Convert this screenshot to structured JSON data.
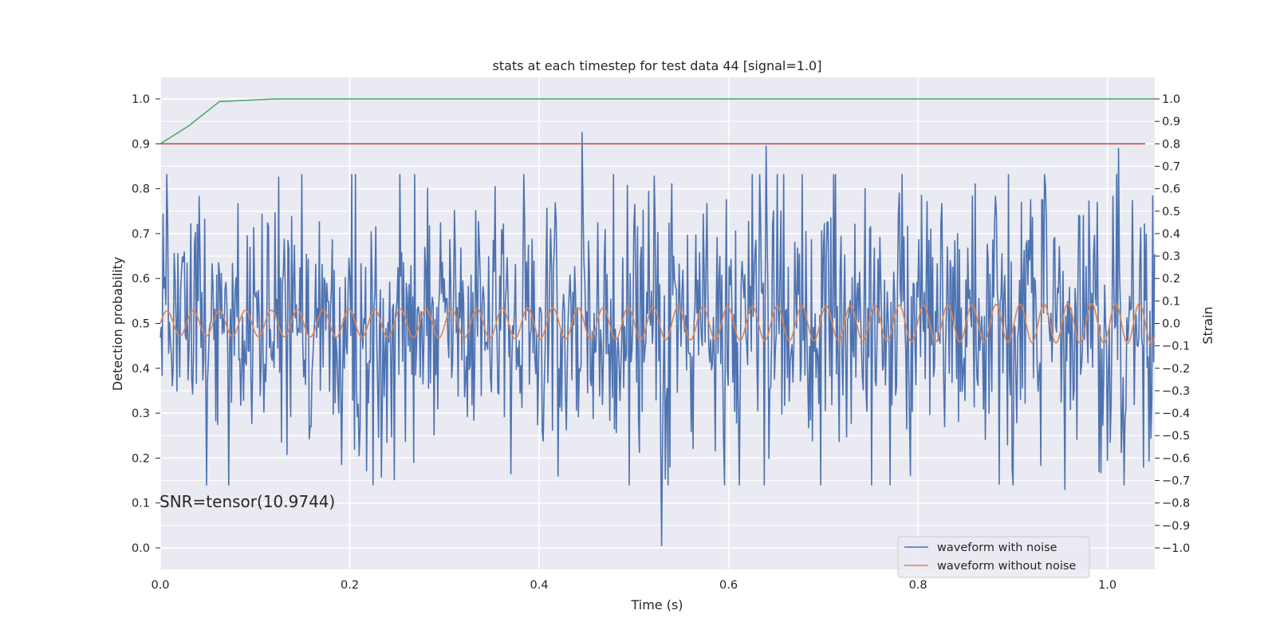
{
  "chart_data": {
    "type": "line",
    "title": "stats at each timestep for test data 44 [signal=1.0]",
    "xlabel": "Time (s)",
    "ylabel": "Detection probability",
    "ylabel_right": "Strain",
    "xlim": [
      0.0,
      1.05
    ],
    "ylim": [
      -0.048,
      1.048
    ],
    "ylim_right": [
      -1.096,
      1.096
    ],
    "x_ticks": [
      "0.0",
      "0.2",
      "0.4",
      "0.6",
      "0.8",
      "1.0"
    ],
    "y_ticks": [
      "0.0",
      "0.1",
      "0.2",
      "0.3",
      "0.4",
      "0.5",
      "0.6",
      "0.7",
      "0.8",
      "0.9",
      "1.0"
    ],
    "y_ticks_right": [
      "−1.0",
      "−0.9",
      "−0.8",
      "−0.7",
      "−0.6",
      "−0.5",
      "−0.4",
      "−0.3",
      "−0.2",
      "−0.1",
      "0.0",
      "0.1",
      "0.2",
      "0.3",
      "0.4",
      "0.5",
      "0.6",
      "0.7",
      "0.8",
      "0.9",
      "1.0"
    ],
    "grid": true,
    "background": "#eaeaf2",
    "detection_probability": {
      "color": "#55a868",
      "x": [
        0.0,
        0.03,
        0.0625,
        0.12,
        1.05
      ],
      "y": [
        0.9,
        0.94,
        0.994,
        1.0,
        1.0
      ]
    },
    "threshold": {
      "color": "#c44e52",
      "y": 0.9,
      "x": [
        0.0,
        1.04
      ]
    },
    "series": [
      {
        "name": "waveform with noise",
        "axis": "right",
        "color": "#4c72b0",
        "sample_rate": 1024,
        "amplitude_range": [
          -1.0,
          0.85
        ],
        "notable_points": [
          {
            "x": 0.445,
            "y": 0.85
          },
          {
            "x": 0.529,
            "y": -0.99
          },
          {
            "x": 0.37,
            "y": -0.67
          },
          {
            "x": 0.42,
            "y": -0.68
          },
          {
            "x": 1.012,
            "y": 0.78
          },
          {
            "x": 0.64,
            "y": 0.79
          },
          {
            "x": 0.955,
            "y": -0.74
          }
        ]
      },
      {
        "name": "waveform without noise",
        "axis": "right",
        "color": "#dd8452",
        "t_end": 1.05,
        "frequency_start_hz": 36,
        "frequency_end_hz": 40,
        "amplitude_start": 0.055,
        "amplitude_end": 0.09
      }
    ],
    "legend": {
      "placement": "lower right",
      "entries": [
        "waveform with noise",
        "waveform without noise"
      ]
    },
    "annotation": "SNR=tensor(10.9744)"
  }
}
